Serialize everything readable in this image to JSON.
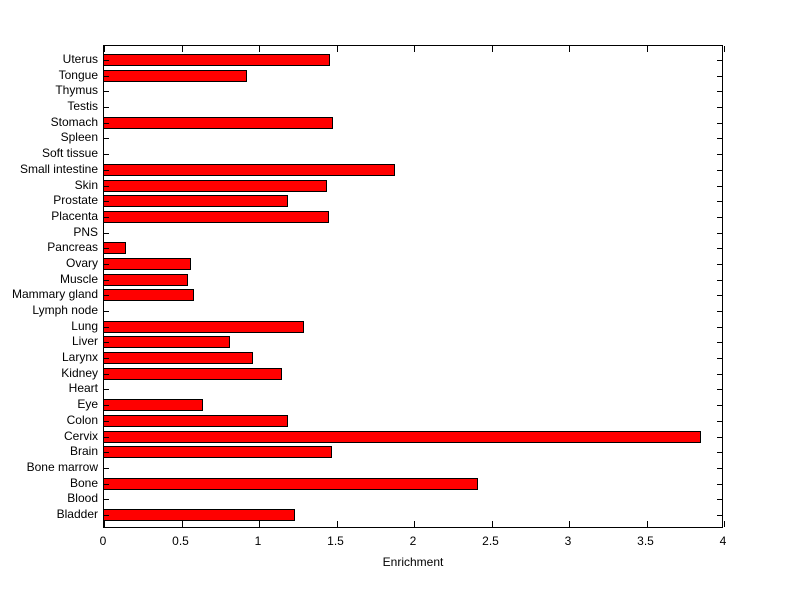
{
  "chart_data": {
    "type": "bar",
    "orientation": "horizontal",
    "title": "",
    "xlabel": "Enrichment",
    "ylabel": "",
    "xlim": [
      0,
      4
    ],
    "xticks": [
      0,
      0.5,
      1,
      1.5,
      2,
      2.5,
      3,
      3.5,
      4
    ],
    "xtick_labels": [
      "0",
      "0.5",
      "1",
      "1.5",
      "2",
      "2.5",
      "3",
      "3.5",
      "4"
    ],
    "grid": false,
    "legend": false,
    "bar_fill_color": "#FF0000",
    "bar_edge_color": "#000000",
    "axis_color": "#000000",
    "background_color": "#FFFFFF",
    "categories_top_to_bottom": [
      "Uterus",
      "Tongue",
      "Thymus",
      "Testis",
      "Stomach",
      "Spleen",
      "Soft tissue",
      "Small intestine",
      "Skin",
      "Prostate",
      "Placenta",
      "PNS",
      "Pancreas",
      "Ovary",
      "Muscle",
      "Mammary gland",
      "Lymph node",
      "Lung",
      "Liver",
      "Larynx",
      "Kidney",
      "Heart",
      "Eye",
      "Colon",
      "Cervix",
      "Brain",
      "Bone marrow",
      "Bone",
      "Blood",
      "Bladder"
    ],
    "values": [
      1.46,
      0.92,
      0,
      0,
      1.48,
      0,
      0,
      1.88,
      1.44,
      1.19,
      1.45,
      0,
      0.14,
      0.56,
      0.54,
      0.58,
      0,
      1.29,
      0.81,
      0.96,
      1.15,
      0,
      0.64,
      1.19,
      3.85,
      1.47,
      0,
      2.41,
      0,
      1.23
    ]
  }
}
